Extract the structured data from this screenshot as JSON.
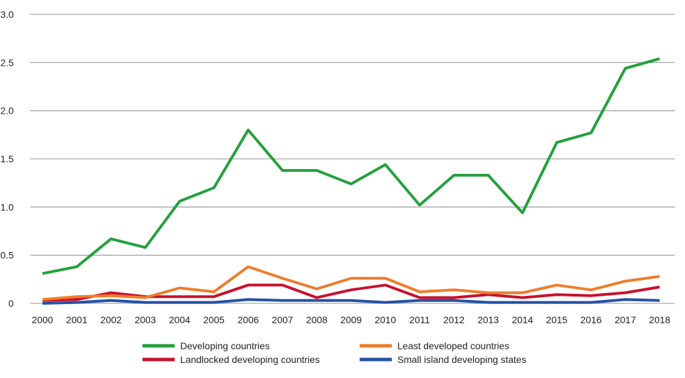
{
  "chart_data": {
    "type": "line",
    "title": "",
    "xlabel": "",
    "ylabel": "",
    "x": [
      "2000",
      "2001",
      "2002",
      "2003",
      "2004",
      "2005",
      "2006",
      "2007",
      "2008",
      "2009",
      "2010",
      "2011",
      "2012",
      "2013",
      "2014",
      "2015",
      "2016",
      "2017",
      "2018"
    ],
    "ylim": [
      0,
      3.0
    ],
    "yticks": [
      0,
      0.5,
      1.0,
      1.5,
      2.0,
      2.5,
      3.0
    ],
    "ytick_labels": [
      "0",
      "0.5",
      "1.0",
      "1.5",
      "2.0",
      "2.5",
      "3.0"
    ],
    "grid": "horizontal",
    "legend_position": "bottom",
    "series": [
      {
        "name": "Developing countries",
        "color": "#23a03c",
        "values": [
          0.31,
          0.38,
          0.67,
          0.58,
          1.06,
          1.2,
          1.8,
          1.38,
          1.38,
          1.24,
          1.44,
          1.02,
          1.33,
          1.33,
          0.94,
          1.67,
          1.77,
          2.44,
          2.54
        ]
      },
      {
        "name": "Least developed countries",
        "color": "#ee7d2b",
        "values": [
          0.04,
          0.07,
          0.08,
          0.06,
          0.16,
          0.12,
          0.38,
          0.26,
          0.15,
          0.26,
          0.26,
          0.12,
          0.14,
          0.11,
          0.11,
          0.19,
          0.14,
          0.23,
          0.28
        ]
      },
      {
        "name": "Landlocked developing countries",
        "color": "#c8102e",
        "values": [
          0.03,
          0.04,
          0.11,
          0.07,
          0.07,
          0.07,
          0.19,
          0.19,
          0.06,
          0.14,
          0.19,
          0.06,
          0.06,
          0.09,
          0.06,
          0.09,
          0.08,
          0.11,
          0.17
        ]
      },
      {
        "name": "Small island developing states",
        "color": "#2452a4",
        "values": [
          0.0,
          0.01,
          0.03,
          0.01,
          0.01,
          0.01,
          0.04,
          0.03,
          0.03,
          0.03,
          0.01,
          0.03,
          0.03,
          0.01,
          0.01,
          0.01,
          0.01,
          0.04,
          0.03
        ]
      }
    ]
  }
}
